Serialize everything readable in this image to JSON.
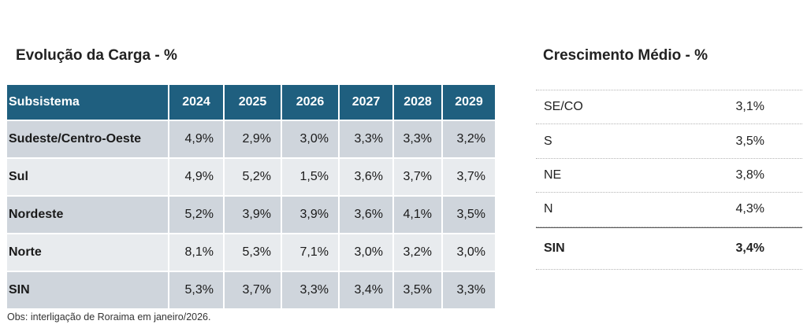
{
  "left_title": "Evolução da Carga - %",
  "right_title": "Crescimento Médio - %",
  "table": {
    "header": [
      "Subsistema",
      "2024",
      "2025",
      "2026",
      "2027",
      "2028",
      "2029"
    ],
    "rows": [
      {
        "name": "Sudeste/Centro-Oeste",
        "values": [
          "4,9%",
          "2,9%",
          "3,0%",
          "3,3%",
          "3,3%",
          "3,2%"
        ]
      },
      {
        "name": "Sul",
        "values": [
          "4,9%",
          "5,2%",
          "1,5%",
          "3,6%",
          "3,7%",
          "3,7%"
        ]
      },
      {
        "name": "Nordeste",
        "values": [
          "5,2%",
          "3,9%",
          "3,9%",
          "3,6%",
          "4,1%",
          "3,5%"
        ]
      },
      {
        "name": "Norte",
        "values": [
          "8,1%",
          "5,3%",
          "7,1%",
          "3,0%",
          "3,2%",
          "3,0%"
        ]
      },
      {
        "name": "SIN",
        "values": [
          "5,3%",
          "3,7%",
          "3,3%",
          "3,4%",
          "3,5%",
          "3,3%"
        ]
      }
    ]
  },
  "note": "Obs: interligação de Roraima em janeiro/2026.",
  "growth": [
    {
      "name": "SE/CO",
      "value": "3,1%"
    },
    {
      "name": "S",
      "value": "3,5%"
    },
    {
      "name": "NE",
      "value": "3,8%"
    },
    {
      "name": "N",
      "value": "4,3%"
    },
    {
      "name": "SIN",
      "value": "3,4%"
    }
  ],
  "colors": {
    "header_bg": "#1f5f7f",
    "row_dark": "#cfd5dc",
    "row_light": "#e8ebee"
  }
}
